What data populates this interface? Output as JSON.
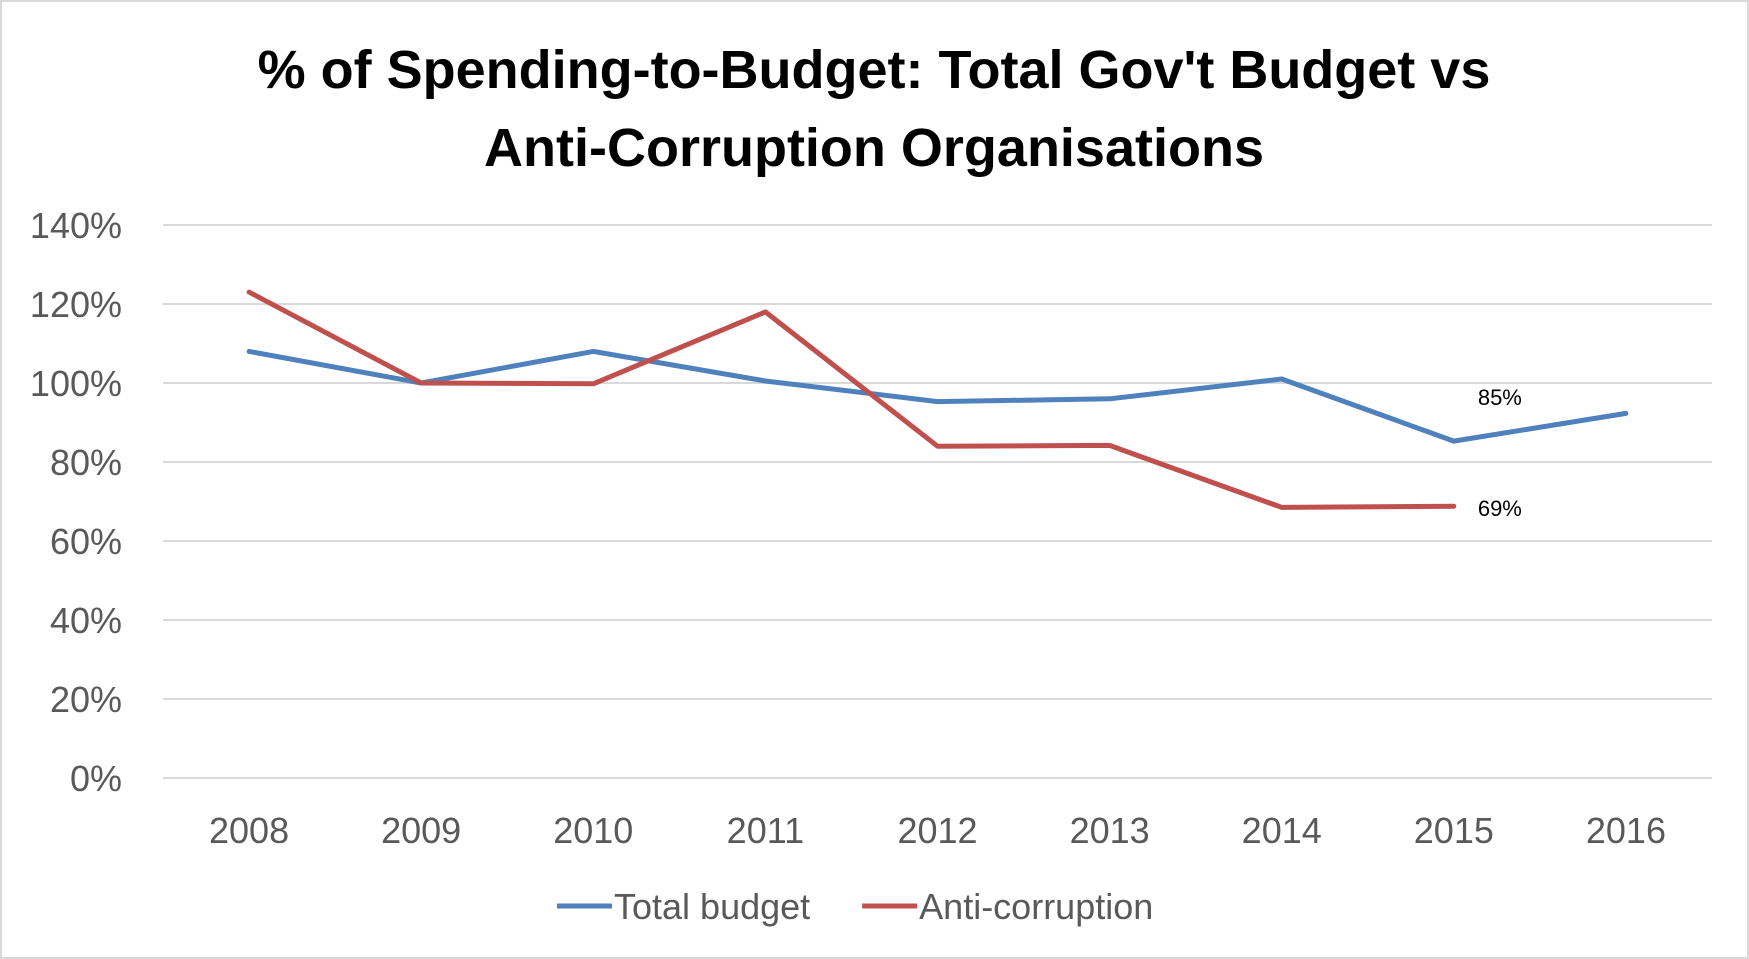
{
  "chart_data": {
    "type": "line",
    "title": [
      "% of Spending-to-Budget: Total Gov't Budget vs",
      "Anti-Corruption Organisations"
    ],
    "xlabel": "",
    "ylabel": "",
    "categories": [
      "2008",
      "2009",
      "2010",
      "2011",
      "2012",
      "2013",
      "2014",
      "2015",
      "2016"
    ],
    "ylim": [
      0,
      1.4
    ],
    "y_ticks": [
      {
        "value": 1.4,
        "label": "140%"
      },
      {
        "value": 1.2,
        "label": "120%"
      },
      {
        "value": 1.0,
        "label": "100%"
      },
      {
        "value": 0.8,
        "label": "80%"
      },
      {
        "value": 0.6,
        "label": "60%"
      },
      {
        "value": 0.4,
        "label": "40%"
      },
      {
        "value": 0.2,
        "label": "20%"
      },
      {
        "value": 0.0,
        "label": "0%"
      }
    ],
    "grid": true,
    "legend_position": "bottom",
    "series": [
      {
        "name": "Total budget",
        "color": "#4F81BD",
        "values": [
          1.08,
          1.0,
          1.08,
          1.005,
          0.953,
          0.96,
          1.01,
          0.853,
          0.923
        ]
      },
      {
        "name": "Anti-corruption",
        "color": "#C0504D",
        "values": [
          1.23,
          1.0,
          0.998,
          1.18,
          0.84,
          0.842,
          0.685,
          0.688,
          null
        ]
      }
    ],
    "annotations": [
      {
        "series": 0,
        "category": "2015",
        "text": "85%"
      },
      {
        "series": 1,
        "category": "2015",
        "text": "69%"
      }
    ]
  }
}
